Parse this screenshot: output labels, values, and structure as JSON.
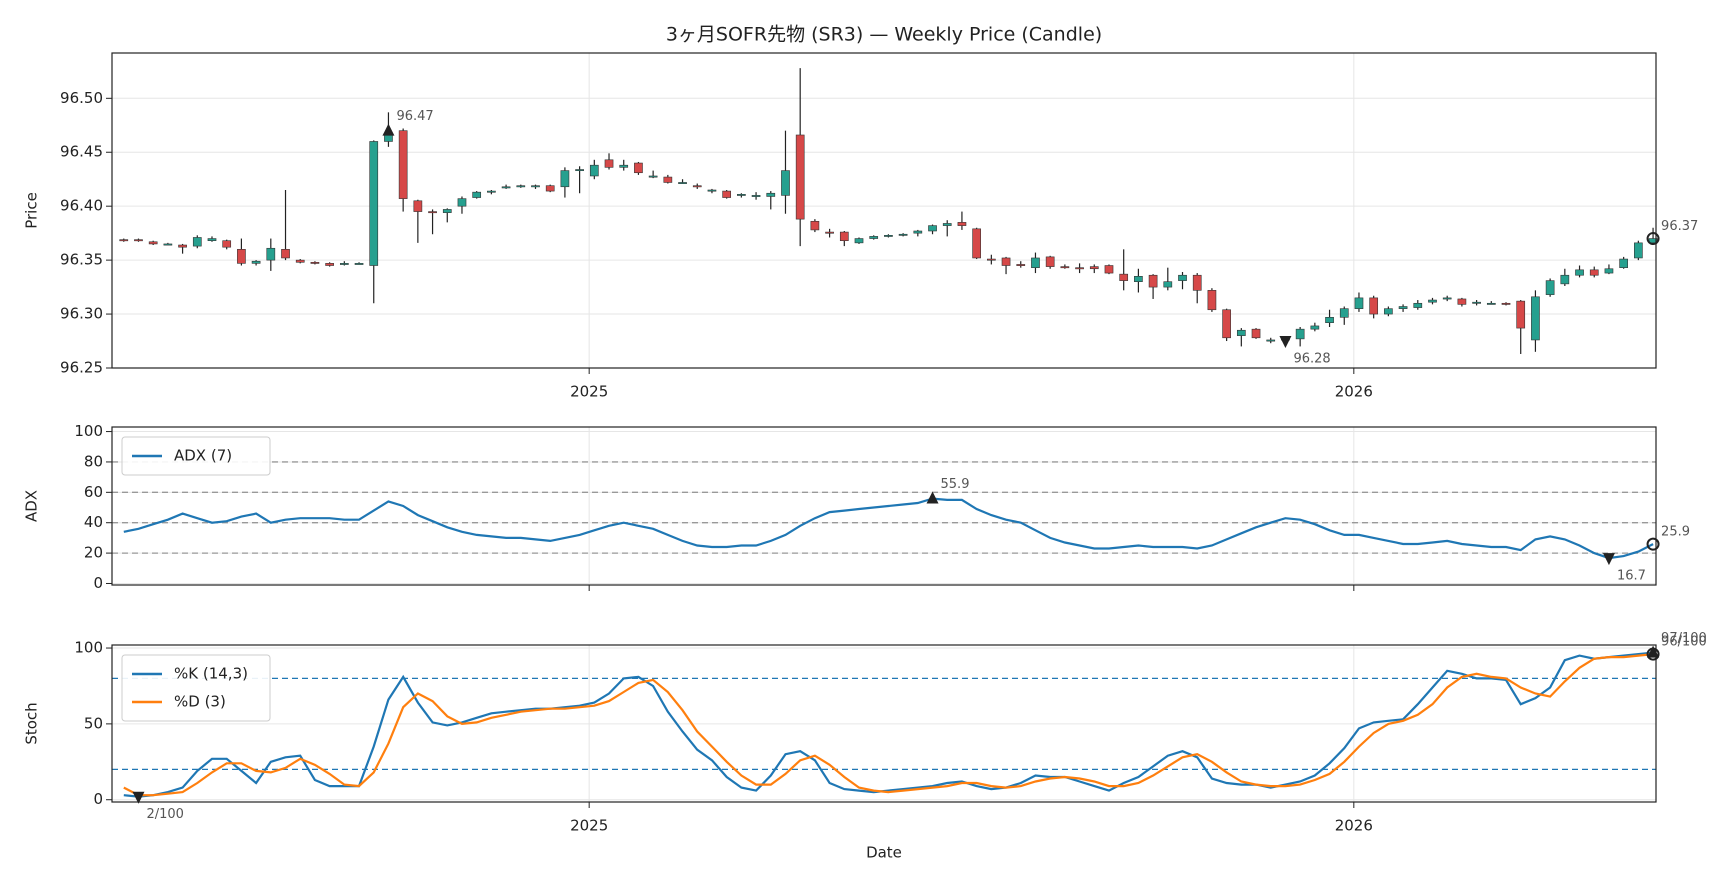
{
  "chart_data": [
    {
      "type": "candlestick",
      "title": "3ヶ月SOFR先物 (SR3) — Weekly Price (Candle)",
      "ylabel": "Price",
      "xlim": [
        -0.8,
        104.2
      ],
      "xticks": [
        {
          "value": 31.65,
          "label": "2025"
        },
        {
          "value": 83.65,
          "label": "2026"
        }
      ],
      "show_xtick_labels": true,
      "ylim": [
        96.25,
        96.542
      ],
      "yticks": [
        96.25,
        {
          "value": 96.3,
          "label": "96.30"
        },
        96.35,
        {
          "value": 96.4,
          "label": "96.40"
        },
        96.45,
        {
          "value": 96.5,
          "label": "96.50"
        }
      ],
      "grid": true,
      "up_color": "#26a08f",
      "down_color": "#d64848",
      "open": [
        96.369,
        96.369,
        96.367,
        96.365,
        96.364,
        96.363,
        96.368,
        96.368,
        96.36,
        96.347,
        96.35,
        96.36,
        96.35,
        96.348,
        96.347,
        96.346,
        96.346,
        96.345,
        96.46,
        96.47,
        96.405,
        96.395,
        96.394,
        96.4,
        96.408,
        96.413,
        96.418,
        96.418,
        96.418,
        96.419,
        96.418,
        96.433,
        96.428,
        96.443,
        96.436,
        96.44,
        96.428,
        96.427,
        96.422,
        96.419,
        96.414,
        96.414,
        96.41,
        96.409,
        96.409,
        96.41,
        96.466,
        96.386,
        96.376,
        96.376,
        96.366,
        96.37,
        96.372,
        96.373,
        96.375,
        96.377,
        96.382,
        96.385,
        96.379,
        96.351,
        96.352,
        96.346,
        96.343,
        96.353,
        96.344,
        96.343,
        96.344,
        96.345,
        96.337,
        96.33,
        96.336,
        96.325,
        96.331,
        96.336,
        96.322,
        96.304,
        96.28,
        96.286,
        96.276,
        96.276,
        96.277,
        96.286,
        96.292,
        96.297,
        96.305,
        96.315,
        96.3,
        96.305,
        96.306,
        96.311,
        96.314,
        96.314,
        96.31,
        96.31,
        96.31,
        96.312,
        96.276,
        96.318,
        96.328,
        96.336,
        96.341,
        96.338,
        96.343,
        96.352,
        96.366
      ],
      "high": [
        96.37,
        96.37,
        96.368,
        96.366,
        96.365,
        96.373,
        96.372,
        96.369,
        96.37,
        96.35,
        96.37,
        96.415,
        96.351,
        96.349,
        96.348,
        96.349,
        96.348,
        96.461,
        96.487,
        96.472,
        96.406,
        96.397,
        96.398,
        96.409,
        96.414,
        96.415,
        96.42,
        96.42,
        96.42,
        96.42,
        96.436,
        96.437,
        96.443,
        96.449,
        96.443,
        96.441,
        96.433,
        96.429,
        96.425,
        96.421,
        96.416,
        96.415,
        96.412,
        96.413,
        96.414,
        96.47,
        96.528,
        96.388,
        96.379,
        96.377,
        96.371,
        96.373,
        96.374,
        96.375,
        96.378,
        96.383,
        96.387,
        96.395,
        96.38,
        96.355,
        96.353,
        96.349,
        96.357,
        96.354,
        96.346,
        96.347,
        96.346,
        96.346,
        96.36,
        96.342,
        96.337,
        96.343,
        96.339,
        96.338,
        96.324,
        96.305,
        96.287,
        96.287,
        96.278,
        96.278,
        96.288,
        96.292,
        96.304,
        96.307,
        96.32,
        96.317,
        96.307,
        96.309,
        96.313,
        96.315,
        96.317,
        96.315,
        96.313,
        96.312,
        96.311,
        96.313,
        96.322,
        96.333,
        96.342,
        96.345,
        96.344,
        96.346,
        96.353,
        96.368,
        96.38
      ],
      "low": [
        96.367,
        96.367,
        96.364,
        96.364,
        96.356,
        96.361,
        96.367,
        96.36,
        96.345,
        96.345,
        96.34,
        96.35,
        96.347,
        96.346,
        96.344,
        96.345,
        96.346,
        96.31,
        96.455,
        96.395,
        96.366,
        96.374,
        96.385,
        96.393,
        96.407,
        96.411,
        96.416,
        96.417,
        96.416,
        96.413,
        96.408,
        96.412,
        96.425,
        96.434,
        96.433,
        96.429,
        96.426,
        96.421,
        96.421,
        96.416,
        96.412,
        96.407,
        96.408,
        96.406,
        96.397,
        96.393,
        96.363,
        96.376,
        96.371,
        96.363,
        96.365,
        96.369,
        96.371,
        96.372,
        96.372,
        96.374,
        96.372,
        96.378,
        96.351,
        96.346,
        96.337,
        96.343,
        96.338,
        96.342,
        96.342,
        96.338,
        96.338,
        96.337,
        96.322,
        96.32,
        96.314,
        96.322,
        96.323,
        96.31,
        96.302,
        96.275,
        96.27,
        96.277,
        96.273,
        96.275,
        96.27,
        96.284,
        96.288,
        96.29,
        96.302,
        96.296,
        96.298,
        96.302,
        96.304,
        96.309,
        96.312,
        96.307,
        96.308,
        96.309,
        96.308,
        96.263,
        96.265,
        96.316,
        96.326,
        96.334,
        96.334,
        96.337,
        96.342,
        96.35,
        96.364
      ],
      "close": [
        96.368,
        96.368,
        96.365,
        96.365,
        96.362,
        96.371,
        96.37,
        96.362,
        96.347,
        96.349,
        96.361,
        96.352,
        96.348,
        96.347,
        96.345,
        96.347,
        96.347,
        96.46,
        96.468,
        96.407,
        96.395,
        96.394,
        96.397,
        96.407,
        96.413,
        96.414,
        96.418,
        96.419,
        96.419,
        96.414,
        96.433,
        96.434,
        96.438,
        96.436,
        96.438,
        96.431,
        96.428,
        96.422,
        96.422,
        96.418,
        96.415,
        96.408,
        96.411,
        96.41,
        96.412,
        96.433,
        96.388,
        96.378,
        96.375,
        96.368,
        96.37,
        96.372,
        96.373,
        96.374,
        96.377,
        96.382,
        96.384,
        96.382,
        96.352,
        96.35,
        96.345,
        96.345,
        96.352,
        96.344,
        96.343,
        96.342,
        96.342,
        96.338,
        96.331,
        96.335,
        96.325,
        96.33,
        96.336,
        96.322,
        96.304,
        96.278,
        96.285,
        96.278,
        96.276,
        96.277,
        96.286,
        96.289,
        96.297,
        96.305,
        96.315,
        96.3,
        96.305,
        96.307,
        96.31,
        96.313,
        96.315,
        96.309,
        96.311,
        96.31,
        96.309,
        96.287,
        96.316,
        96.331,
        96.336,
        96.341,
        96.336,
        96.342,
        96.351,
        96.366,
        96.37
      ],
      "annotations": [
        {
          "x": 18,
          "value": 96.47,
          "label": "96.47",
          "marker": "up"
        },
        {
          "x": 79,
          "value": 96.275,
          "label": "96.28",
          "marker": "down"
        },
        {
          "x": 104,
          "value": 96.37,
          "label": "96.37",
          "marker": "circle"
        }
      ]
    },
    {
      "type": "line",
      "ylabel": "ADX",
      "xlim": [
        -0.8,
        104.2
      ],
      "xticks": [
        31.65,
        83.65
      ],
      "show_xtick_labels": false,
      "ylim": [
        -1,
        103
      ],
      "yticks": [
        0,
        20,
        40,
        60,
        80,
        100
      ],
      "grid": true,
      "legend": "upper left",
      "hlines": [
        20,
        40,
        60,
        80
      ],
      "hline_color": "#999999",
      "series": [
        {
          "name": "ADX (7)",
          "color": "#1f77b4",
          "values": [
            34,
            36,
            39,
            42,
            46,
            43,
            40,
            41,
            44,
            46,
            40,
            42,
            43,
            43,
            43,
            42,
            42,
            48,
            54,
            51,
            45,
            41,
            37,
            34,
            32,
            31,
            30,
            30,
            29,
            28,
            30,
            32,
            35,
            38,
            40,
            38,
            36,
            32,
            28,
            25,
            24,
            24,
            25,
            25,
            28,
            32,
            38,
            43,
            47,
            48,
            49,
            50,
            51,
            52,
            53,
            55.9,
            55,
            55,
            49,
            45,
            42,
            40,
            35,
            30,
            27,
            25,
            23,
            23,
            24,
            25,
            24,
            24,
            24,
            23,
            25,
            29,
            33,
            37,
            40,
            43,
            42,
            39,
            35,
            32,
            32,
            30,
            28,
            26,
            26,
            27,
            28,
            26,
            25,
            24,
            24,
            22,
            29,
            31,
            29,
            25,
            20,
            16.7,
            18,
            21,
            25.9
          ]
        }
      ],
      "annotations": [
        {
          "x": 55,
          "value": 55.9,
          "label": "55.9",
          "marker": "up"
        },
        {
          "x": 101,
          "value": 16.7,
          "label": "16.7",
          "marker": "down"
        },
        {
          "x": 104,
          "value": 25.9,
          "label": "25.9",
          "marker": "circle"
        }
      ]
    },
    {
      "type": "line",
      "ylabel": "Stoch",
      "xlabel": "Date",
      "xlim": [
        -0.8,
        104.2
      ],
      "xticks": [
        {
          "value": 31.65,
          "label": "2025"
        },
        {
          "value": 83.65,
          "label": "2026"
        }
      ],
      "show_xtick_labels": true,
      "ylim": [
        -1.5,
        102
      ],
      "yticks": [
        0,
        50,
        100
      ],
      "grid": true,
      "legend": "upper left",
      "hlines": [
        20,
        80
      ],
      "hline_color": "#1f77b4",
      "series": [
        {
          "name": "%K (14,3)",
          "color": "#1f77b4",
          "values": [
            3,
            2,
            3,
            5,
            8,
            19,
            27,
            27,
            19,
            11,
            25,
            28,
            29,
            13,
            9,
            9,
            9,
            35,
            66,
            81,
            64,
            51,
            49,
            51,
            54,
            57,
            58,
            59,
            60,
            60,
            61,
            62,
            64,
            70,
            80,
            81,
            75,
            58,
            45,
            33,
            26,
            15,
            8,
            6,
            16,
            30,
            32,
            26,
            11,
            7,
            6,
            5,
            6,
            7,
            8,
            9,
            11,
            12,
            9,
            7,
            8,
            11,
            16,
            15,
            15,
            12,
            9,
            6,
            11,
            15,
            22,
            29,
            32,
            28,
            14,
            11,
            10,
            10,
            8,
            10,
            12,
            16,
            24,
            34,
            47,
            51,
            52,
            53,
            63,
            74,
            85,
            83,
            80,
            80,
            79,
            63,
            67,
            74,
            92,
            95,
            93,
            94,
            95,
            96,
            97
          ]
        },
        {
          "name": "%D (3)",
          "color": "#ff7f0e",
          "values": [
            8,
            3,
            3,
            4,
            5,
            11,
            18,
            24,
            24,
            19,
            18,
            21,
            27,
            23,
            17,
            10,
            9,
            18,
            37,
            61,
            70,
            65,
            55,
            50,
            51,
            54,
            56,
            58,
            59,
            60,
            60,
            61,
            62,
            65,
            71,
            77,
            79,
            71,
            59,
            45,
            35,
            25,
            16,
            10,
            10,
            17,
            26,
            29,
            23,
            15,
            8,
            6,
            5,
            6,
            7,
            8,
            9,
            11,
            11,
            9,
            8,
            9,
            12,
            14,
            15,
            14,
            12,
            9,
            9,
            11,
            16,
            22,
            28,
            30,
            25,
            18,
            12,
            10,
            9,
            9,
            10,
            13,
            17,
            25,
            35,
            44,
            50,
            52,
            56,
            63,
            74,
            81,
            83,
            81,
            80,
            74,
            70,
            68,
            78,
            87,
            93,
            94,
            94,
            95,
            96
          ]
        }
      ],
      "annotations": [
        {
          "x": 1,
          "value": 2,
          "label": "2/100",
          "marker": "down"
        },
        {
          "x": 104,
          "value": 97,
          "label": "97/100",
          "marker": "up"
        },
        {
          "x": 104,
          "value": 96,
          "label": "96/100",
          "marker": "circle"
        }
      ]
    }
  ]
}
